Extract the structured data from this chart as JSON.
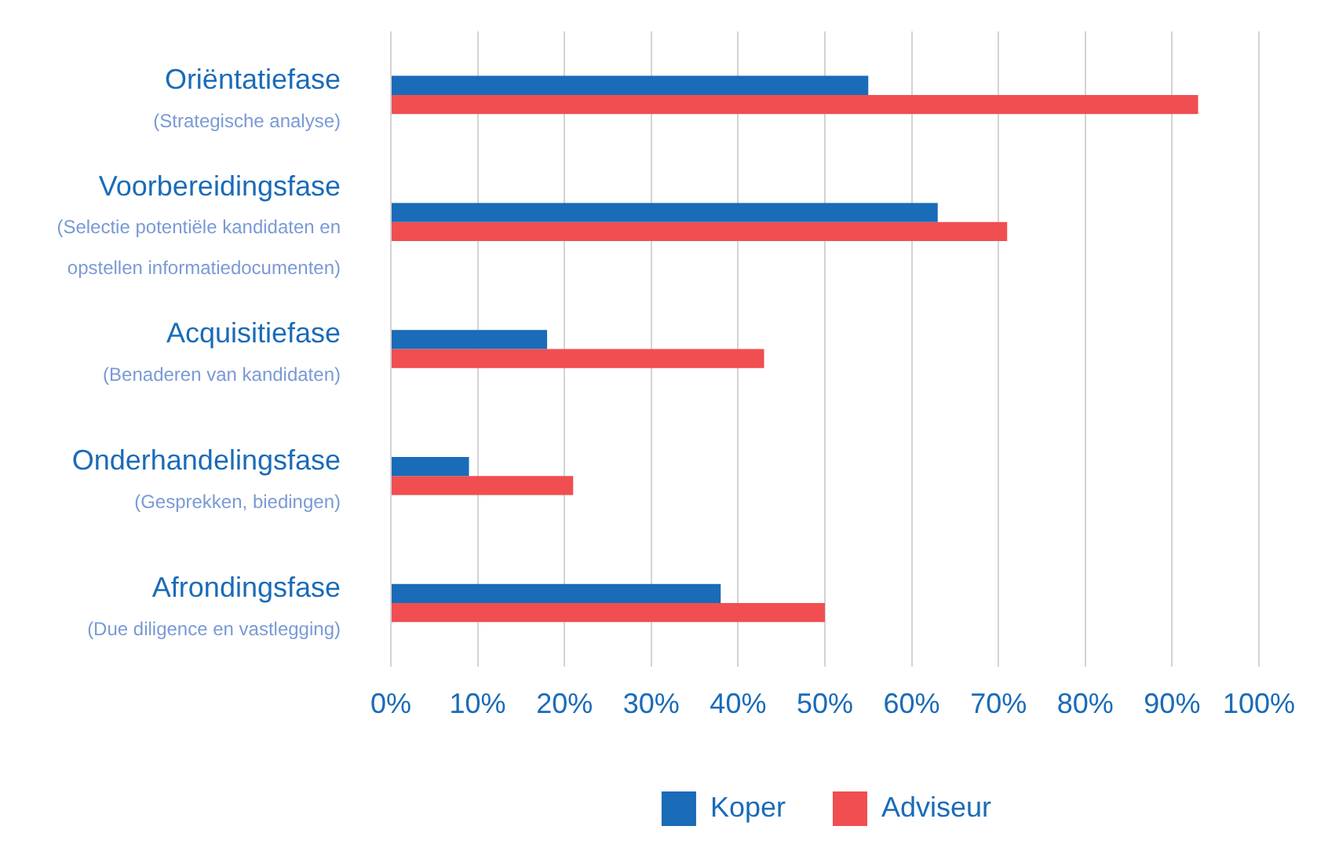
{
  "chart_data": {
    "type": "bar",
    "orientation": "horizontal",
    "categories": [
      "Oriëntatiefase\n(Strategische analyse)",
      "Voorbereidingsfase\n(Selectie potentiële kandidaten en\nopstellen informatiedocumenten)",
      "Acquisitiefase\n(Benaderen van kandidaten)",
      "Onderhandelingsfase\n(Gesprekken, biedingen)",
      "Afrondingsfase\n(Due diligence en vastlegging)"
    ],
    "series": [
      {
        "name": "Koper",
        "color": "#1a6bb8",
        "values": [
          55,
          63,
          18,
          9,
          38
        ]
      },
      {
        "name": "Adviseur",
        "color": "#f04e51",
        "values": [
          93,
          71,
          43,
          21,
          50
        ]
      }
    ],
    "xlim": [
      0,
      100
    ],
    "xticks": [
      {
        "value": 0,
        "label": "0%"
      },
      {
        "value": 10,
        "label": "10%"
      },
      {
        "value": 20,
        "label": "20%"
      },
      {
        "value": 30,
        "label": "30%"
      },
      {
        "value": 40,
        "label": "40%"
      },
      {
        "value": 50,
        "label": "50%"
      },
      {
        "value": 60,
        "label": "60%"
      },
      {
        "value": 70,
        "label": "70%"
      },
      {
        "value": 80,
        "label": "80%"
      },
      {
        "value": 90,
        "label": "90%"
      },
      {
        "value": 100,
        "label": "100%"
      }
    ],
    "grid": "x",
    "legend": "bottom"
  }
}
